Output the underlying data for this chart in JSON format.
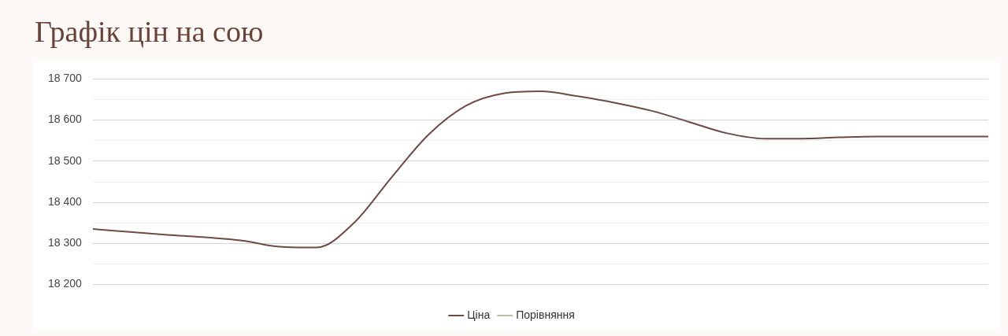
{
  "chart_data": {
    "type": "line",
    "title": "Графік цін на сою",
    "categories": [
      null,
      null,
      null,
      null,
      null,
      null,
      null,
      null,
      null,
      null,
      null,
      null,
      null,
      null,
      null,
      null,
      null,
      null,
      null,
      null,
      null,
      null,
      null,
      null,
      null
    ],
    "series": [
      {
        "name": "Ціна",
        "color": "#6e4a44",
        "values": [
          18335,
          18328,
          18321,
          18315,
          18307,
          18292,
          18290,
          18350,
          18460,
          18565,
          18635,
          18665,
          18670,
          18658,
          18642,
          18622,
          18595,
          18568,
          18555,
          18555,
          18558,
          18560,
          18560,
          18560,
          18560
        ]
      },
      {
        "name": "Порівняння",
        "color": "#b5bfa8",
        "values": [
          null,
          null,
          null,
          null,
          null,
          null,
          null,
          null,
          null,
          null,
          null,
          null,
          null,
          null,
          null,
          null,
          null,
          null,
          null,
          null,
          null,
          null,
          null,
          null,
          null
        ]
      }
    ],
    "ylim": [
      18200,
      18700
    ],
    "yticks": [
      {
        "value": 18200,
        "label": "18 200"
      },
      {
        "value": 18250,
        "label": null
      },
      {
        "value": 18300,
        "label": "18 300"
      },
      {
        "value": 18350,
        "label": null
      },
      {
        "value": 18400,
        "label": "18 400"
      },
      {
        "value": 18450,
        "label": null
      },
      {
        "value": 18500,
        "label": "18 500"
      },
      {
        "value": 18550,
        "label": null
      },
      {
        "value": 18600,
        "label": "18 600"
      },
      {
        "value": 18650,
        "label": null
      },
      {
        "value": 18700,
        "label": "18 700"
      }
    ],
    "grid": "y",
    "legend": "bottom",
    "marker": "none",
    "line_style": "solid"
  }
}
